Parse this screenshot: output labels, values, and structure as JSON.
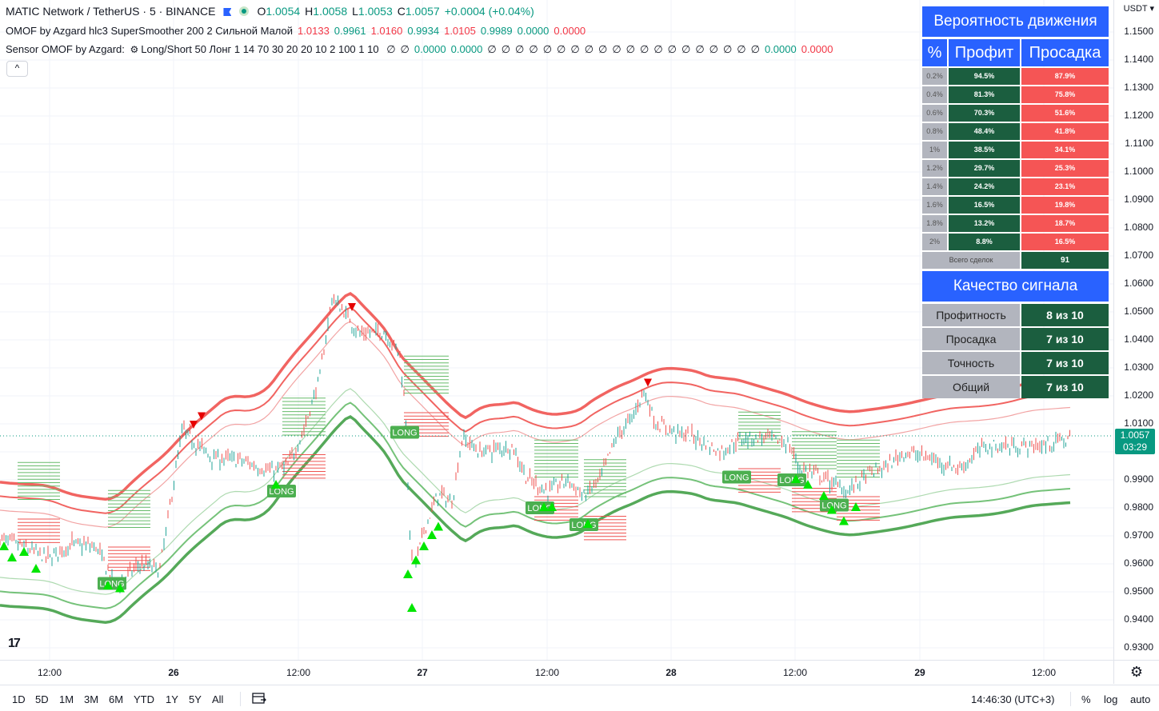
{
  "legend": {
    "symbol": "MATIC Network / TetherUS · 5 · BINANCE",
    "ohlc": [
      {
        "k": "O",
        "v": "1.0054"
      },
      {
        "k": "H",
        "v": "1.0058"
      },
      {
        "k": "L",
        "v": "1.0053"
      },
      {
        "k": "C",
        "v": "1.0057"
      }
    ],
    "change": "+0.0004 (+0.04%)",
    "ind1_name": "OMOF by Azgard hlc3 SuperSmoother 200 2 Сильной Малой",
    "ind1_values": [
      {
        "v": "1.0133",
        "c": "red"
      },
      {
        "v": "0.9961",
        "c": "grn"
      },
      {
        "v": "1.0160",
        "c": "red"
      },
      {
        "v": "0.9934",
        "c": "grn"
      },
      {
        "v": "1.0105",
        "c": "red"
      },
      {
        "v": "0.9989",
        "c": "grn"
      },
      {
        "v": "0.0000",
        "c": "grn"
      },
      {
        "v": "0.0000",
        "c": "red"
      }
    ],
    "ind2_prefix": "Sensor",
    "ind2_name": "OMOF by Azgard:",
    "ind2_params": "Long/Short 50 Лонг 1 14 70 30 20 20 10 2 100 1 10",
    "ind2_values": "∅ ∅ 0.0000 0.0000 ∅ ∅ ∅ ∅ ∅ ∅ ∅ ∅ ∅ ∅ ∅ ∅ ∅ ∅ ∅ ∅ ∅ ∅ ∅ ∅ 0.0000 0.0000",
    "collapse": "^"
  },
  "colors": {
    "up": "#089981",
    "down": "#f23645",
    "accent": "#2962ff",
    "profit_bg": "#1b5e3f",
    "drawdown_bg": "#f55555"
  },
  "price_scale": {
    "currency": "USDT",
    "ticks": [
      "1.1500",
      "1.1400",
      "1.1300",
      "1.1200",
      "1.1100",
      "1.1000",
      "1.0900",
      "1.0800",
      "1.0700",
      "1.0600",
      "1.0500",
      "1.0400",
      "1.0300",
      "1.0200",
      "1.0100",
      "1.0000",
      "0.9900",
      "0.9800",
      "0.9700",
      "0.9600",
      "0.9500",
      "0.9400",
      "0.9300"
    ],
    "last_price": "1.0057",
    "countdown": "03:29"
  },
  "time_axis": [
    {
      "label": "12:00",
      "day": false
    },
    {
      "label": "26",
      "day": true
    },
    {
      "label": "12:00",
      "day": false
    },
    {
      "label": "27",
      "day": true
    },
    {
      "label": "12:00",
      "day": false
    },
    {
      "label": "28",
      "day": true
    },
    {
      "label": "12:00",
      "day": false
    },
    {
      "label": "29",
      "day": true
    },
    {
      "label": "12:00",
      "day": false
    }
  ],
  "signal_label": "LONG",
  "stats": {
    "title": "Вероятность движения",
    "headers": [
      "%",
      "Профит",
      "Просадка"
    ],
    "rows": [
      {
        "pct": "0.2%",
        "profit": "94.5%",
        "drawdown": "87.9%"
      },
      {
        "pct": "0.4%",
        "profit": "81.3%",
        "drawdown": "75.8%"
      },
      {
        "pct": "0.6%",
        "profit": "70.3%",
        "drawdown": "51.6%"
      },
      {
        "pct": "0.8%",
        "profit": "48.4%",
        "drawdown": "41.8%"
      },
      {
        "pct": "1%",
        "profit": "38.5%",
        "drawdown": "34.1%"
      },
      {
        "pct": "1.2%",
        "profit": "29.7%",
        "drawdown": "25.3%"
      },
      {
        "pct": "1.4%",
        "profit": "24.2%",
        "drawdown": "23.1%"
      },
      {
        "pct": "1.6%",
        "profit": "16.5%",
        "drawdown": "19.8%"
      },
      {
        "pct": "1.8%",
        "profit": "13.2%",
        "drawdown": "18.7%"
      },
      {
        "pct": "2%",
        "profit": "8.8%",
        "drawdown": "16.5%"
      }
    ],
    "total_label": "Всего сделок",
    "total_value": "91",
    "quality_title": "Качество сигнала",
    "quality": [
      {
        "label": "Профитность",
        "value": "8 из 10"
      },
      {
        "label": "Просадка",
        "value": "7 из 10"
      },
      {
        "label": "Точность",
        "value": "7 из 10"
      },
      {
        "label": "Общий",
        "value": "7 из 10"
      }
    ]
  },
  "bottom_bar": {
    "ranges": [
      "1D",
      "5D",
      "1M",
      "3M",
      "6M",
      "YTD",
      "1Y",
      "5Y",
      "All"
    ],
    "clock": "14:46:30 (UTC+3)",
    "percent": "%",
    "log": "log",
    "auto": "auto"
  }
}
